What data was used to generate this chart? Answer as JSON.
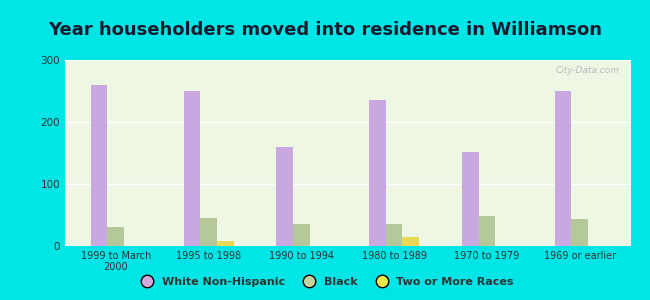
{
  "title": "Year householders moved into residence in Williamson",
  "categories": [
    "1999 to March\n2000",
    "1995 to 1998",
    "1990 to 1994",
    "1980 to 1989",
    "1970 to 1979",
    "1969 or earlier"
  ],
  "white_non_hispanic": [
    260,
    250,
    160,
    235,
    152,
    250
  ],
  "black": [
    30,
    45,
    35,
    35,
    48,
    43
  ],
  "two_or_more_races": [
    0,
    8,
    0,
    15,
    0,
    0
  ],
  "bar_colors": {
    "white_non_hispanic": "#c9a8e0",
    "black": "#b5c89a",
    "two_or_more_races": "#e8d855"
  },
  "legend_colors": {
    "White Non-Hispanic": "#d4a8dc",
    "Black": "#c8d4a0",
    "Two or More Races": "#ece84a"
  },
  "ylim": [
    0,
    300
  ],
  "yticks": [
    0,
    100,
    200,
    300
  ],
  "background_color": "#00e5e5",
  "plot_bg": "#eef6e4",
  "bar_width": 0.18,
  "title_fontsize": 13,
  "watermark": "City-Data.com"
}
